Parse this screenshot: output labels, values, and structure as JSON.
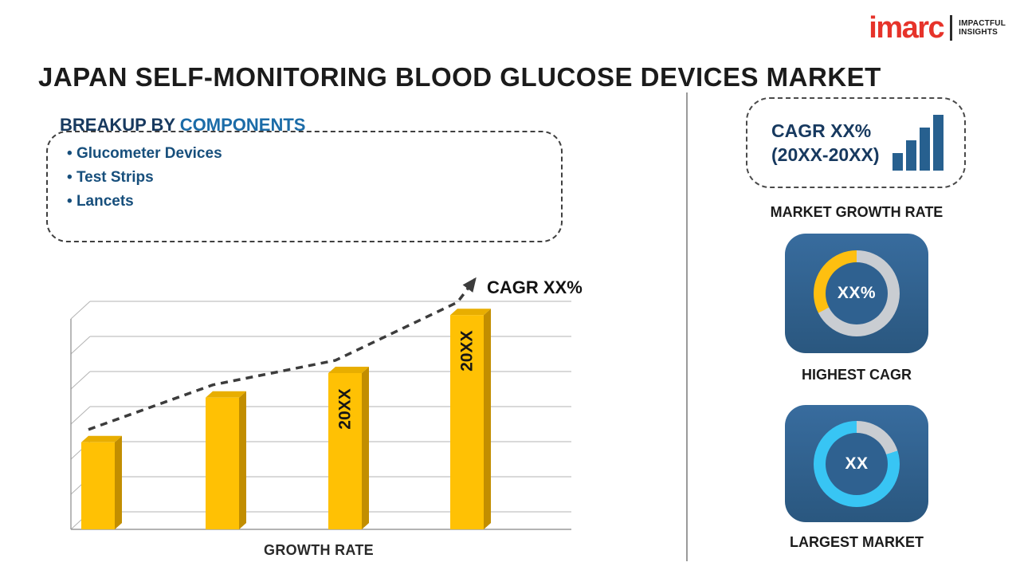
{
  "title": "JAPAN SELF-MONITORING BLOOD GLUCOSE DEVICES MARKET",
  "logo": {
    "brand": "imarc",
    "tagline": [
      "IMPACTFUL",
      "INSIGHTS"
    ]
  },
  "breakup": {
    "heading_prefix": "BREAKUP BY",
    "heading_highlight": "COMPONENTS",
    "items": [
      "Glucometer Devices",
      "Test Strips",
      "Lancets"
    ]
  },
  "chart_data": {
    "type": "bar",
    "title": "",
    "categories": [
      "",
      "",
      "20XX",
      "20XX"
    ],
    "values": [
      39,
      59,
      70,
      96
    ],
    "xlabel": "GROWTH RATE",
    "ylabel": "",
    "ylim": [
      0,
      100
    ],
    "grid": true,
    "trendline": true,
    "annotation": "CAGR XX%",
    "bar_color": "#FFC104",
    "bar_top_color": "#E8AE00",
    "bar_side_color": "#C28E00",
    "trend_color": "#3C3C3C"
  },
  "sidebar": {
    "growth_card": {
      "line1": "CAGR XX%",
      "line2": "(20XX-20XX)",
      "caption": "MARKET GROWTH RATE"
    },
    "highest_cagr_card": {
      "value": "XX%",
      "caption": "HIGHEST CAGR",
      "accent_color": "#FEBF10"
    },
    "largest_market_card": {
      "value": "XX",
      "caption": "LARGEST MARKET",
      "accent_color": "#38C5F4"
    }
  },
  "colors": {
    "brand_red": "#E6332A",
    "navy_heading": "#17395F",
    "blue_highlight": "#1B6CA8",
    "list_text": "#174F7C",
    "card_bg": "#2F6190",
    "bar_gold": "#FFC104",
    "donut_gray": "#C9CDD2"
  }
}
